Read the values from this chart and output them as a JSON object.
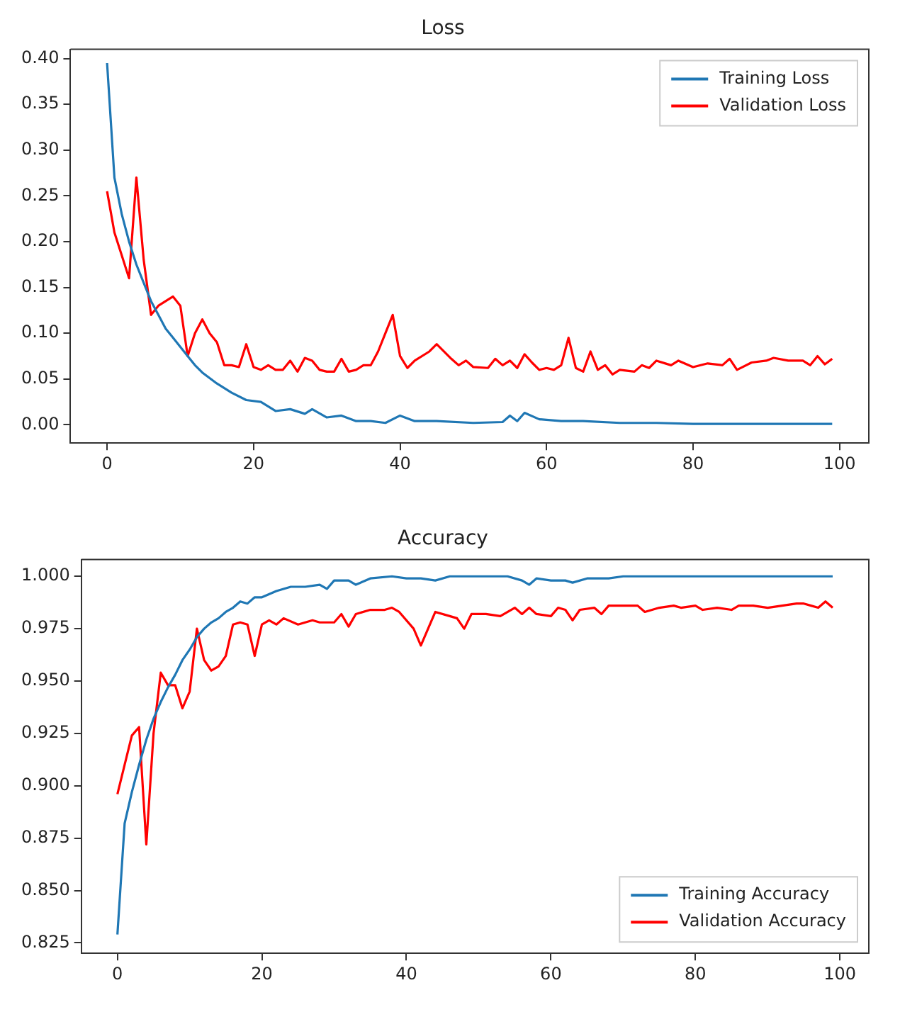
{
  "chart_data": [
    {
      "type": "line",
      "title": "Loss",
      "xlim": [
        -5,
        104
      ],
      "ylim": [
        -0.02,
        0.41
      ],
      "xticks": [
        0,
        20,
        40,
        60,
        80,
        100
      ],
      "yticks": [
        {
          "value": 0,
          "label": "0.00"
        },
        {
          "value": 0.05,
          "label": "0.05"
        },
        {
          "value": 0.1,
          "label": "0.10"
        },
        {
          "value": 0.15,
          "label": "0.15"
        },
        {
          "value": 0.2,
          "label": "0.20"
        },
        {
          "value": 0.25,
          "label": "0.25"
        },
        {
          "value": 0.3,
          "label": "0.30"
        },
        {
          "value": 0.35,
          "label": "0.35"
        },
        {
          "value": 0.4,
          "label": "0.40"
        }
      ],
      "grid": false,
      "legend": "top right",
      "marker": "none",
      "line_style": "solid",
      "series": [
        {
          "name": "Training Loss",
          "color": "#1f77b4",
          "x": [
            0,
            1,
            2,
            3,
            4,
            5,
            6,
            7,
            8,
            9,
            10,
            12,
            13,
            15,
            17,
            19,
            21,
            23,
            25,
            27,
            28,
            30,
            32,
            34,
            36,
            38,
            40,
            42,
            45,
            50,
            54,
            55,
            56,
            57,
            59,
            62,
            65,
            70,
            75,
            80,
            90,
            99
          ],
          "values": [
            0.395,
            0.27,
            0.23,
            0.2,
            0.175,
            0.155,
            0.135,
            0.12,
            0.105,
            0.095,
            0.085,
            0.065,
            0.057,
            0.045,
            0.035,
            0.027,
            0.025,
            0.015,
            0.017,
            0.012,
            0.017,
            0.008,
            0.01,
            0.004,
            0.004,
            0.002,
            0.01,
            0.004,
            0.004,
            0.002,
            0.003,
            0.01,
            0.004,
            0.013,
            0.006,
            0.004,
            0.004,
            0.002,
            0.002,
            0.001,
            0.001,
            0.001
          ]
        },
        {
          "name": "Validation Loss",
          "color": "#ff0000",
          "x": [
            0,
            1,
            2,
            3,
            4,
            5,
            6,
            7,
            8,
            9,
            10,
            11,
            12,
            13,
            14,
            15,
            16,
            17,
            18,
            19,
            20,
            21,
            22,
            23,
            24,
            25,
            26,
            27,
            28,
            29,
            30,
            31,
            32,
            33,
            34,
            35,
            36,
            37,
            38,
            39,
            40,
            41,
            42,
            44,
            45,
            47,
            48,
            49,
            50,
            52,
            53,
            54,
            55,
            56,
            57,
            58,
            59,
            60,
            61,
            62,
            63,
            64,
            65,
            66,
            67,
            68,
            69,
            70,
            72,
            73,
            74,
            75,
            77,
            78,
            80,
            82,
            84,
            85,
            86,
            88,
            90,
            91,
            93,
            95,
            96,
            97,
            98,
            99
          ],
          "values": [
            0.255,
            0.21,
            0.185,
            0.16,
            0.27,
            0.18,
            0.12,
            0.13,
            0.135,
            0.14,
            0.13,
            0.075,
            0.1,
            0.115,
            0.1,
            0.09,
            0.065,
            0.065,
            0.063,
            0.088,
            0.063,
            0.06,
            0.065,
            0.06,
            0.06,
            0.07,
            0.058,
            0.073,
            0.07,
            0.06,
            0.058,
            0.058,
            0.072,
            0.058,
            0.06,
            0.065,
            0.065,
            0.08,
            0.1,
            0.12,
            0.075,
            0.062,
            0.07,
            0.08,
            0.088,
            0.072,
            0.065,
            0.07,
            0.063,
            0.062,
            0.072,
            0.065,
            0.07,
            0.062,
            0.077,
            0.068,
            0.06,
            0.062,
            0.06,
            0.065,
            0.095,
            0.062,
            0.058,
            0.08,
            0.06,
            0.065,
            0.055,
            0.06,
            0.058,
            0.065,
            0.062,
            0.07,
            0.065,
            0.07,
            0.063,
            0.067,
            0.065,
            0.072,
            0.06,
            0.068,
            0.07,
            0.073,
            0.07,
            0.07,
            0.065,
            0.075,
            0.066,
            0.072
          ]
        }
      ]
    },
    {
      "type": "line",
      "title": "Accuracy",
      "xlim": [
        -5,
        104
      ],
      "ylim": [
        0.82,
        1.008
      ],
      "xticks": [
        0,
        20,
        40,
        60,
        80,
        100
      ],
      "yticks": [
        {
          "value": 0.825,
          "label": "0.825"
        },
        {
          "value": 0.85,
          "label": "0.850"
        },
        {
          "value": 0.875,
          "label": "0.875"
        },
        {
          "value": 0.9,
          "label": "0.900"
        },
        {
          "value": 0.925,
          "label": "0.925"
        },
        {
          "value": 0.95,
          "label": "0.950"
        },
        {
          "value": 0.975,
          "label": "0.975"
        },
        {
          "value": 1,
          "label": "1.000"
        }
      ],
      "grid": false,
      "legend": "bottom right",
      "marker": "none",
      "line_style": "solid",
      "series": [
        {
          "name": "Training Accuracy",
          "color": "#1f77b4",
          "x": [
            0,
            1,
            2,
            3,
            4,
            5,
            6,
            7,
            8,
            9,
            10,
            11,
            12,
            13,
            14,
            15,
            16,
            17,
            18,
            19,
            20,
            22,
            24,
            26,
            28,
            29,
            30,
            32,
            33,
            35,
            38,
            40,
            42,
            44,
            46,
            50,
            54,
            56,
            57,
            58,
            60,
            62,
            63,
            65,
            68,
            70,
            80,
            99
          ],
          "values": [
            0.829,
            0.882,
            0.897,
            0.91,
            0.922,
            0.932,
            0.94,
            0.947,
            0.953,
            0.96,
            0.965,
            0.971,
            0.975,
            0.978,
            0.98,
            0.983,
            0.985,
            0.988,
            0.987,
            0.99,
            0.99,
            0.993,
            0.995,
            0.995,
            0.996,
            0.994,
            0.998,
            0.998,
            0.996,
            0.999,
            1,
            0.999,
            0.999,
            0.998,
            1,
            1,
            1,
            0.998,
            0.996,
            0.999,
            0.998,
            0.998,
            0.997,
            0.999,
            0.999,
            1,
            1,
            1
          ]
        },
        {
          "name": "Validation Accuracy",
          "color": "#ff0000",
          "x": [
            0,
            1,
            2,
            3,
            4,
            5,
            6,
            7,
            8,
            9,
            10,
            11,
            12,
            13,
            14,
            15,
            16,
            17,
            18,
            19,
            20,
            21,
            22,
            23,
            25,
            27,
            28,
            30,
            31,
            32,
            33,
            35,
            37,
            38,
            39,
            41,
            42,
            43,
            44,
            46,
            47,
            48,
            49,
            51,
            53,
            55,
            56,
            57,
            58,
            60,
            61,
            62,
            63,
            64,
            66,
            67,
            68,
            70,
            72,
            73,
            75,
            77,
            78,
            80,
            81,
            83,
            85,
            86,
            88,
            90,
            92,
            94,
            95,
            96,
            97,
            98,
            99
          ],
          "values": [
            0.896,
            0.91,
            0.924,
            0.928,
            0.872,
            0.925,
            0.954,
            0.948,
            0.948,
            0.937,
            0.945,
            0.975,
            0.96,
            0.955,
            0.957,
            0.962,
            0.977,
            0.978,
            0.977,
            0.962,
            0.977,
            0.979,
            0.977,
            0.98,
            0.977,
            0.979,
            0.978,
            0.978,
            0.982,
            0.976,
            0.982,
            0.984,
            0.984,
            0.985,
            0.983,
            0.975,
            0.967,
            0.975,
            0.983,
            0.981,
            0.98,
            0.975,
            0.982,
            0.982,
            0.981,
            0.985,
            0.982,
            0.985,
            0.982,
            0.981,
            0.985,
            0.984,
            0.979,
            0.984,
            0.985,
            0.982,
            0.986,
            0.986,
            0.986,
            0.983,
            0.985,
            0.986,
            0.985,
            0.986,
            0.984,
            0.985,
            0.984,
            0.986,
            0.986,
            0.985,
            0.986,
            0.987,
            0.987,
            0.986,
            0.985,
            0.988,
            0.985
          ]
        }
      ]
    }
  ]
}
